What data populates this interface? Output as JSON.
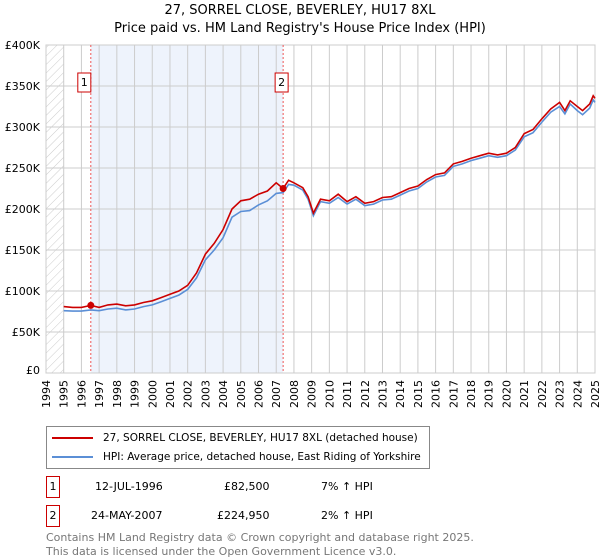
{
  "title": "27, SORREL CLOSE, BEVERLEY, HU17 8XL",
  "subtitle": "Price paid vs. HM Land Registry's House Price Index (HPI)",
  "chart_data": {
    "type": "line",
    "xlim": [
      1994,
      2025
    ],
    "ylim": [
      0,
      400000
    ],
    "x_ticks": [
      "1994",
      "1995",
      "1996",
      "1997",
      "1998",
      "1999",
      "2000",
      "2001",
      "2002",
      "2003",
      "2004",
      "2005",
      "2006",
      "2007",
      "2008",
      "2009",
      "2010",
      "2011",
      "2012",
      "2013",
      "2014",
      "2015",
      "2016",
      "2017",
      "2018",
      "2019",
      "2020",
      "2021",
      "2022",
      "2023",
      "2024",
      "2025"
    ],
    "y_ticks": [
      {
        "v": 0,
        "label": "£0"
      },
      {
        "v": 50000,
        "label": "£50K"
      },
      {
        "v": 100000,
        "label": "£100K"
      },
      {
        "v": 150000,
        "label": "£150K"
      },
      {
        "v": 200000,
        "label": "£200K"
      },
      {
        "v": 250000,
        "label": "£250K"
      },
      {
        "v": 300000,
        "label": "£300K"
      },
      {
        "v": 350000,
        "label": "£350K"
      },
      {
        "v": 400000,
        "label": "£400K"
      }
    ],
    "grid": true,
    "hatched_before": 1995,
    "shaded_range": [
      1996.53,
      2007.39
    ],
    "series": [
      {
        "name": "27, SORREL CLOSE, BEVERLEY, HU17 8XL (detached house)",
        "color": "#cc0000",
        "x": [
          1995,
          1995.5,
          1996,
          1996.53,
          1997,
          1997.5,
          1998,
          1998.5,
          1999,
          1999.5,
          2000,
          2000.5,
          2001,
          2001.5,
          2002,
          2002.5,
          2003,
          2003.5,
          2004,
          2004.5,
          2005,
          2005.5,
          2006,
          2006.5,
          2007,
          2007.39,
          2007.7,
          2008,
          2008.5,
          2008.8,
          2009.1,
          2009.5,
          2010,
          2010.5,
          2011,
          2011.5,
          2012,
          2012.5,
          2013,
          2013.5,
          2014,
          2014.5,
          2015,
          2015.5,
          2016,
          2016.5,
          2017,
          2017.5,
          2018,
          2018.5,
          2019,
          2019.5,
          2020,
          2020.5,
          2021,
          2021.5,
          2022,
          2022.5,
          2023,
          2023.3,
          2023.6,
          2024,
          2024.3,
          2024.7,
          2024.9,
          2025
        ],
        "y": [
          81000,
          80000,
          80000,
          82500,
          80000,
          83000,
          84000,
          82000,
          83000,
          86000,
          88000,
          92000,
          96000,
          100000,
          107000,
          122000,
          145000,
          158000,
          175000,
          200000,
          210000,
          212000,
          218000,
          222000,
          232000,
          224950,
          235000,
          232000,
          226000,
          215000,
          195000,
          212000,
          210000,
          218000,
          209000,
          215000,
          207000,
          209000,
          214000,
          215000,
          220000,
          225000,
          228000,
          236000,
          242000,
          244000,
          255000,
          258000,
          262000,
          265000,
          268000,
          266000,
          268000,
          275000,
          292000,
          297000,
          310000,
          322000,
          330000,
          320000,
          332000,
          325000,
          320000,
          328000,
          338000,
          335000
        ]
      },
      {
        "name": "HPI: Average price, detached house, East Riding of Yorkshire",
        "color": "#5b8fd6",
        "x": [
          1995,
          1995.5,
          1996,
          1996.53,
          1997,
          1997.5,
          1998,
          1998.5,
          1999,
          1999.5,
          2000,
          2000.5,
          2001,
          2001.5,
          2002,
          2002.5,
          2003,
          2003.5,
          2004,
          2004.5,
          2005,
          2005.5,
          2006,
          2006.5,
          2007,
          2007.39,
          2007.7,
          2008,
          2008.5,
          2008.8,
          2009.1,
          2009.5,
          2010,
          2010.5,
          2011,
          2011.5,
          2012,
          2012.5,
          2013,
          2013.5,
          2014,
          2014.5,
          2015,
          2015.5,
          2016,
          2016.5,
          2017,
          2017.5,
          2018,
          2018.5,
          2019,
          2019.5,
          2020,
          2020.5,
          2021,
          2021.5,
          2022,
          2022.5,
          2023,
          2023.3,
          2023.6,
          2024,
          2024.3,
          2024.7,
          2024.9,
          2025
        ],
        "y": [
          76000,
          75500,
          75500,
          77000,
          76000,
          78000,
          79000,
          77000,
          78000,
          81000,
          83000,
          87000,
          91000,
          95000,
          102000,
          116000,
          138000,
          150000,
          165000,
          190000,
          197000,
          198000,
          205000,
          210000,
          219000,
          220000,
          230000,
          229000,
          223000,
          212000,
          192000,
          209000,
          207000,
          214000,
          206000,
          212000,
          204000,
          206000,
          211000,
          212000,
          217000,
          222000,
          225000,
          233000,
          239000,
          241000,
          252000,
          255000,
          259000,
          262000,
          265000,
          263000,
          265000,
          272000,
          288000,
          293000,
          306000,
          318000,
          325000,
          316000,
          328000,
          320000,
          315000,
          323000,
          333000,
          330000
        ]
      }
    ],
    "markers": [
      {
        "label": "1",
        "x": 1996.53,
        "y": 82500
      },
      {
        "label": "2",
        "x": 2007.39,
        "y": 224950
      }
    ]
  },
  "legend": [
    {
      "label": "27, SORREL CLOSE, BEVERLEY, HU17 8XL (detached house)",
      "color": "#cc0000"
    },
    {
      "label": "HPI: Average price, detached house, East Riding of Yorkshire",
      "color": "#5b8fd6"
    }
  ],
  "transactions": [
    {
      "num": "1",
      "date": "12-JUL-1996",
      "price": "£82,500",
      "hpi": "7% ↑ HPI"
    },
    {
      "num": "2",
      "date": "24-MAY-2007",
      "price": "£224,950",
      "hpi": "2% ↑ HPI"
    }
  ],
  "footer": [
    "Contains HM Land Registry data © Crown copyright and database right 2025.",
    "This data is licensed under the Open Government Licence v3.0."
  ]
}
